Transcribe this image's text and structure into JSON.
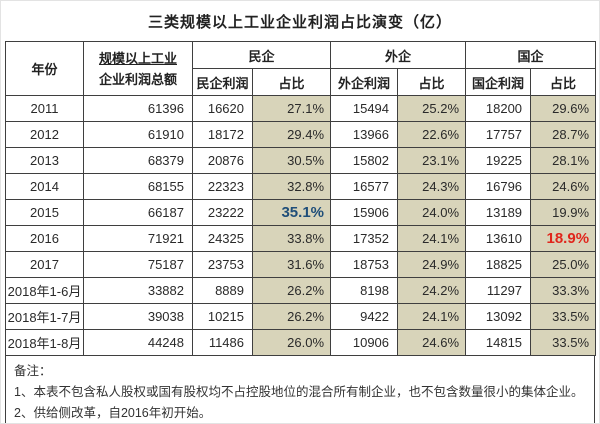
{
  "title": "三类规模以上工业企业利润占比演变（亿）",
  "colors": {
    "share_column_bg": "#d8d4ba",
    "grid_border": "#3f3f3f",
    "highlight_blue": "#1f4e79",
    "highlight_red": "#e0261c"
  },
  "table": {
    "header": {
      "year": "年份",
      "total_line1": "规模以上工业",
      "total_line2": "企业利润总额",
      "groups": [
        {
          "label": "民企",
          "profit": "民企利润",
          "share": "占比"
        },
        {
          "label": "外企",
          "profit": "外企利润",
          "share": "占比"
        },
        {
          "label": "国企",
          "profit": "国企利润",
          "share": "占比"
        }
      ]
    },
    "rows": [
      [
        "2011",
        "61396",
        "16620",
        "27.1%",
        "15494",
        "25.2%",
        "18200",
        "29.6%"
      ],
      [
        "2012",
        "61910",
        "18172",
        "29.4%",
        "13966",
        "22.6%",
        "17757",
        "28.7%"
      ],
      [
        "2013",
        "68379",
        "20876",
        "30.5%",
        "15802",
        "23.1%",
        "19225",
        "28.1%"
      ],
      [
        "2014",
        "68155",
        "22323",
        "32.8%",
        "16577",
        "24.3%",
        "16796",
        "24.6%"
      ],
      [
        "2015",
        "66187",
        "23222",
        "35.1%",
        "15906",
        "24.0%",
        "13189",
        "19.9%"
      ],
      [
        "2016",
        "71921",
        "24325",
        "33.8%",
        "17352",
        "24.1%",
        "13610",
        "18.9%"
      ],
      [
        "2017",
        "75187",
        "23753",
        "31.6%",
        "18753",
        "24.9%",
        "18825",
        "25.0%"
      ],
      [
        "2018年1-6月",
        "33882",
        "8889",
        "26.2%",
        "8198",
        "24.2%",
        "11297",
        "33.3%"
      ],
      [
        "2018年1-7月",
        "39038",
        "10215",
        "26.2%",
        "9422",
        "24.1%",
        "13092",
        "33.5%"
      ],
      [
        "2018年1-8月",
        "44248",
        "11486",
        "26.0%",
        "10906",
        "24.6%",
        "14815",
        "33.5%"
      ]
    ],
    "highlights": [
      {
        "row": 4,
        "col": 3,
        "style": "blue"
      },
      {
        "row": 5,
        "col": 7,
        "style": "red"
      }
    ]
  },
  "notes": {
    "label": "备注：",
    "items": [
      "1、本表不包含私人股权或国有股权均不占控股地位的混合所有制企业，也不包含数量很小的集体企业。",
      "2、供给侧改革，自2016年初开始。"
    ]
  },
  "chart_data": {
    "type": "table",
    "title": "三类规模以上工业企业利润占比演变（亿）",
    "columns": [
      "年份",
      "规模以上工业企业利润总额",
      "民企利润",
      "民企占比",
      "外企利润",
      "外企占比",
      "国企利润",
      "国企占比"
    ],
    "rows": [
      [
        "2011",
        61396,
        16620,
        "27.1%",
        15494,
        "25.2%",
        18200,
        "29.6%"
      ],
      [
        "2012",
        61910,
        18172,
        "29.4%",
        13966,
        "22.6%",
        17757,
        "28.7%"
      ],
      [
        "2013",
        68379,
        20876,
        "30.5%",
        15802,
        "23.1%",
        19225,
        "28.1%"
      ],
      [
        "2014",
        68155,
        22323,
        "32.8%",
        16577,
        "24.3%",
        16796,
        "24.6%"
      ],
      [
        "2015",
        66187,
        23222,
        "35.1%",
        15906,
        "24.0%",
        13189,
        "19.9%"
      ],
      [
        "2016",
        71921,
        24325,
        "33.8%",
        17352,
        "24.1%",
        13610,
        "18.9%"
      ],
      [
        "2017",
        75187,
        23753,
        "31.6%",
        18753,
        "24.9%",
        18825,
        "25.0%"
      ],
      [
        "2018年1-6月",
        33882,
        8889,
        "26.2%",
        8198,
        "24.2%",
        11297,
        "33.3%"
      ],
      [
        "2018年1-7月",
        39038,
        10215,
        "26.2%",
        9422,
        "24.1%",
        13092,
        "33.5%"
      ],
      [
        "2018年1-8月",
        44248,
        11486,
        "26.0%",
        10906,
        "24.6%",
        14815,
        "33.5%"
      ]
    ],
    "annotations": [
      "2015年民企占比35.1%为蓝色加粗高亮",
      "2016年国企占比18.9%为红色加粗高亮"
    ]
  }
}
